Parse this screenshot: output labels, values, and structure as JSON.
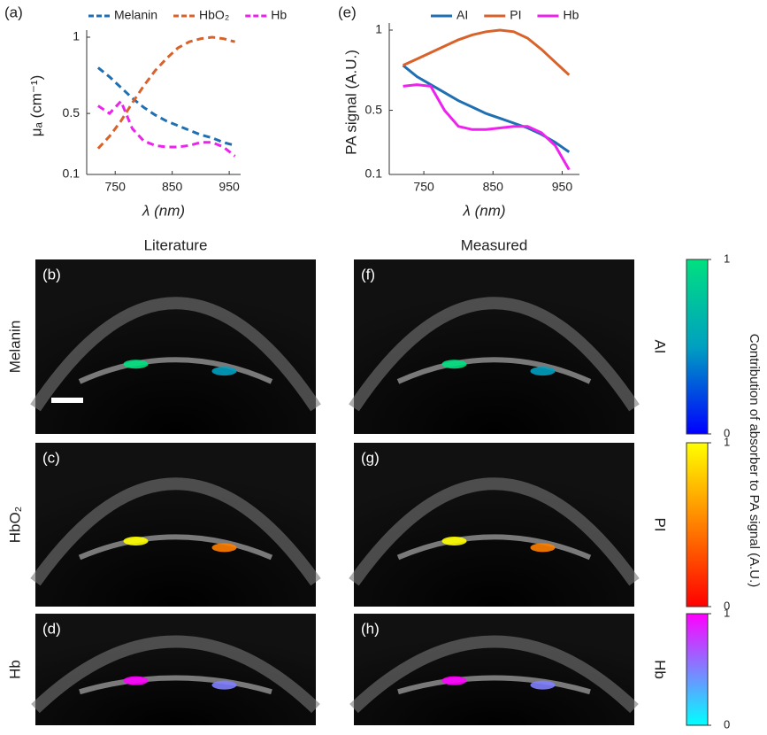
{
  "chart_data": [
    {
      "type": "line",
      "label": "(a)",
      "line_style": "dashed",
      "x_label": "λ (nm)",
      "y_label": "μₐ (cm⁻¹)",
      "x": [
        720,
        740,
        760,
        780,
        800,
        820,
        840,
        860,
        880,
        900,
        920,
        940,
        960
      ],
      "xlim": [
        700,
        970
      ],
      "xticks": [
        750,
        850,
        950
      ],
      "ylim": [
        0.1,
        1
      ],
      "yticks": [
        0.1,
        0.5,
        1
      ],
      "series": [
        {
          "name": "Melanin",
          "color": "#1f6fb2",
          "values": [
            0.8,
            0.74,
            0.67,
            0.6,
            0.54,
            0.49,
            0.45,
            0.42,
            0.39,
            0.36,
            0.34,
            0.31,
            0.29
          ]
        },
        {
          "name": "HbO₂",
          "color": "#d9622b",
          "values": [
            0.27,
            0.35,
            0.45,
            0.57,
            0.68,
            0.78,
            0.86,
            0.93,
            0.97,
            0.99,
            1.0,
            0.99,
            0.97
          ]
        },
        {
          "name": "Hb",
          "color": "#ee22ee",
          "values": [
            0.55,
            0.5,
            0.58,
            0.4,
            0.32,
            0.29,
            0.28,
            0.28,
            0.29,
            0.31,
            0.31,
            0.28,
            0.22
          ]
        }
      ]
    },
    {
      "type": "line",
      "label": "(e)",
      "line_style": "solid",
      "x_label": "λ (nm)",
      "y_label": "PA signal (A.U.)",
      "x": [
        720,
        740,
        760,
        780,
        800,
        820,
        840,
        860,
        880,
        900,
        920,
        940,
        960
      ],
      "xlim": [
        700,
        975
      ],
      "xticks": [
        750,
        850,
        950
      ],
      "ylim": [
        0.1,
        1
      ],
      "yticks": [
        0.1,
        0.5,
        1
      ],
      "series": [
        {
          "name": "AI",
          "color": "#1f6fb2",
          "values": [
            0.78,
            0.71,
            0.66,
            0.61,
            0.56,
            0.52,
            0.48,
            0.45,
            0.42,
            0.39,
            0.35,
            0.3,
            0.24
          ]
        },
        {
          "name": "PI",
          "color": "#d9622b",
          "values": [
            0.78,
            0.82,
            0.86,
            0.9,
            0.94,
            0.97,
            0.99,
            1.0,
            0.99,
            0.95,
            0.88,
            0.8,
            0.72
          ]
        },
        {
          "name": "Hb",
          "color": "#ee22ee",
          "values": [
            0.65,
            0.66,
            0.65,
            0.5,
            0.4,
            0.38,
            0.38,
            0.39,
            0.4,
            0.4,
            0.36,
            0.28,
            0.13
          ]
        }
      ]
    }
  ],
  "images": {
    "column_titles": [
      "Literature",
      "Measured"
    ],
    "row_labels": [
      "Melanin",
      "HbO₂",
      "Hb"
    ],
    "panels": [
      [
        "(b)",
        "(c)",
        "(d)"
      ],
      [
        "(f)",
        "(g)",
        "(h)"
      ]
    ],
    "colorbar_title": "Contribution of absorber to PA signal (A.U.)",
    "colorbars": [
      {
        "name": "AI",
        "ticks": [
          0,
          1
        ],
        "colors": [
          "#0000ff",
          "#00a0c0",
          "#00e080"
        ]
      },
      {
        "name": "PI",
        "ticks": [
          0,
          1
        ],
        "colors": [
          "#ff0000",
          "#ff8000",
          "#ffff00"
        ]
      },
      {
        "name": "Hb",
        "ticks": [
          0,
          1
        ],
        "colors": [
          "#00ffff",
          "#8080ff",
          "#ff00ff"
        ]
      }
    ]
  }
}
